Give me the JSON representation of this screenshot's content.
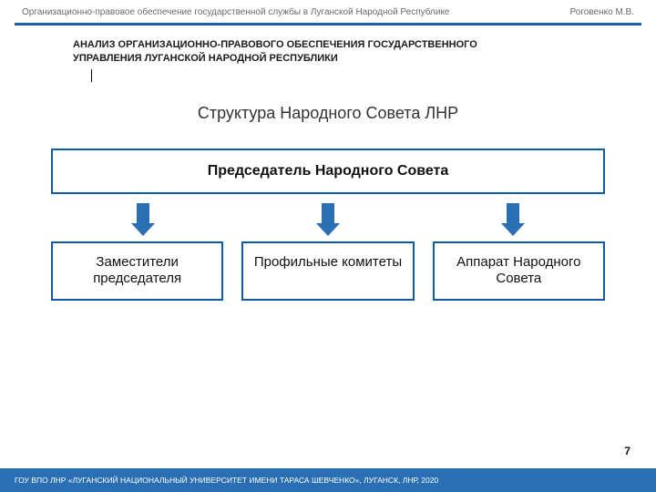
{
  "header": {
    "left": "Организационно-правовое обеспечение государственной службы в Луганской Народной Республике",
    "right": "Роговенко М.В."
  },
  "colors": {
    "rule": "#1f5fa8",
    "box_border": "#0f5aa6",
    "arrow_fill": "#2a6fb4",
    "footer_bg": "#2a6fb4",
    "footer_text": "#ffffff"
  },
  "heading": {
    "line1": "АНАЛИЗ ОРГАНИЗАЦИОННО-ПРАВОВОГО ОБЕСПЕЧЕНИЯ ГОСУДАРСТВЕННОГО",
    "line2": "УПРАВЛЕНИЯ ЛУГАНСКОЙ НАРОДНОЙ РЕСПУБЛИКИ"
  },
  "subtitle": "Структура Народного Совета ЛНР",
  "org": {
    "top": "Председатель Народного Совета",
    "children": [
      "Заместители председателя",
      "Профильные комитеты",
      "Аппарат Народного Совета"
    ]
  },
  "page_number": "7",
  "footer": "ГОУ ВПО ЛНР «ЛУГАНСКИЙ НАЦИОНАЛЬНЫЙ УНИВЕРСИТЕТ ИМЕНИ ТАРАСА ШЕВЧЕНКО», ЛУГАНСК, ЛНР, 2020"
}
